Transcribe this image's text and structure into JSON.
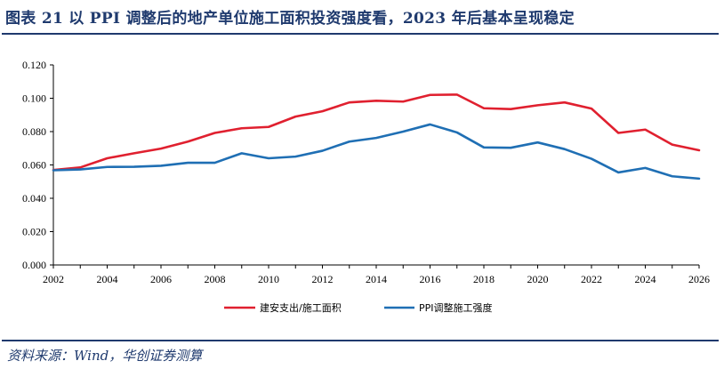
{
  "header": {
    "title": "图表 21   以 PPI 调整后的地产单位施工面积投资强度看，2023 年后基本呈现稳定"
  },
  "footer": {
    "source": "资料来源：Wind，华创证券测算"
  },
  "chart_data": {
    "type": "line",
    "title": "",
    "xlabel": "",
    "ylabel": "",
    "xlim": [
      2002,
      2026
    ],
    "ylim": [
      0,
      0.12
    ],
    "x_ticks": [
      "2002",
      "2004",
      "2006",
      "2008",
      "2010",
      "2012",
      "2014",
      "2016",
      "2018",
      "2020",
      "2022",
      "2024",
      "2026"
    ],
    "y_ticks": [
      "0.000",
      "0.020",
      "0.040",
      "0.060",
      "0.080",
      "0.100",
      "0.120"
    ],
    "grid": false,
    "legend_position": "bottom-center",
    "x": [
      2002,
      2003,
      2004,
      2005,
      2006,
      2007,
      2008,
      2009,
      2010,
      2011,
      2012,
      2013,
      2014,
      2015,
      2016,
      2017,
      2018,
      2019,
      2020,
      2021,
      2022,
      2023,
      2024,
      2025,
      2026
    ],
    "series": [
      {
        "name": "建安支出/施工面积",
        "color": "#e0202f",
        "values": [
          0.057,
          0.0585,
          0.064,
          0.067,
          0.0698,
          0.074,
          0.0792,
          0.082,
          0.0828,
          0.089,
          0.0922,
          0.0975,
          0.0985,
          0.098,
          0.102,
          0.1022,
          0.094,
          0.0935,
          0.0958,
          0.0975,
          0.0938,
          0.0792,
          0.0812,
          0.0722,
          0.0688
        ]
      },
      {
        "name": "PPI调整施工强度",
        "color": "#1f6fb4",
        "values": [
          0.0568,
          0.0573,
          0.0588,
          0.0589,
          0.0595,
          0.0613,
          0.0613,
          0.067,
          0.064,
          0.065,
          0.0685,
          0.074,
          0.0762,
          0.08,
          0.0843,
          0.0795,
          0.0705,
          0.0703,
          0.0735,
          0.0695,
          0.0637,
          0.0555,
          0.0582,
          0.0532,
          0.0518
        ]
      }
    ]
  }
}
